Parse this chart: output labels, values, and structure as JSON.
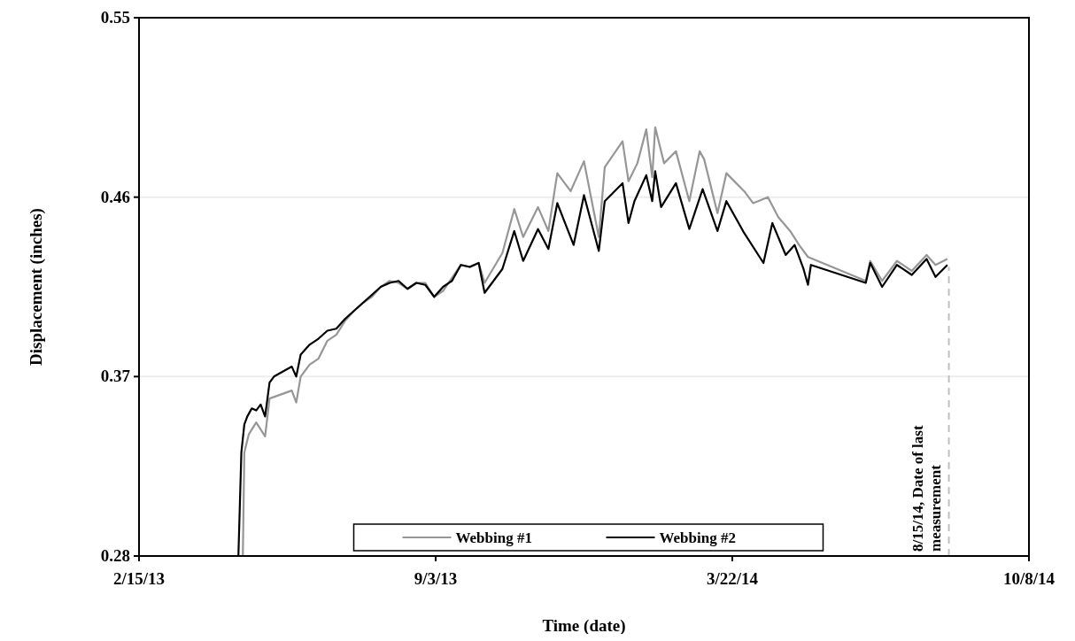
{
  "chart_data": {
    "type": "line",
    "xlabel": "Time (date)",
    "ylabel": "Displacement (inches)",
    "xlim": [
      "2013-02-15",
      "2014-10-08"
    ],
    "xticks": [
      {
        "value": "2013-02-15",
        "label": "2/15/13"
      },
      {
        "value": "2013-09-03",
        "label": "9/3/13"
      },
      {
        "value": "2014-03-22",
        "label": "3/22/14"
      },
      {
        "value": "2014-10-08",
        "label": "10/8/14"
      }
    ],
    "ylim": [
      0.28,
      0.55
    ],
    "yticks": [
      0.28,
      0.37,
      0.46,
      0.55
    ],
    "grid": "y",
    "legend": "bottom",
    "ref_lines": [
      {
        "axis": "x",
        "value": "2014-08-15",
        "label": "8/15/14, Date of last measurement",
        "color": "#bfbfbf",
        "line_style": "dashed"
      }
    ],
    "series": [
      {
        "name": "Webbing #1",
        "color": "#969696",
        "x": [
          "2013-04-26",
          "2013-04-27",
          "2013-04-30",
          "2013-05-05",
          "2013-05-11",
          "2013-05-14",
          "2013-05-29",
          "2013-06-01",
          "2013-06-04",
          "2013-06-10",
          "2013-06-16",
          "2013-06-22",
          "2013-06-28",
          "2013-07-04",
          "2013-07-10",
          "2013-07-16",
          "2013-07-22",
          "2013-07-28",
          "2013-08-03",
          "2013-08-09",
          "2013-08-15",
          "2013-08-21",
          "2013-08-27",
          "2013-09-02",
          "2013-09-08",
          "2013-09-20",
          "2013-09-26",
          "2013-10-02",
          "2013-10-06",
          "2013-10-18",
          "2013-10-26",
          "2013-11-01",
          "2013-11-11",
          "2013-11-18",
          "2013-11-24",
          "2013-12-03",
          "2013-12-12",
          "2013-12-22",
          "2013-12-26",
          "2014-01-07",
          "2014-01-11",
          "2014-01-17",
          "2014-01-23",
          "2014-01-27",
          "2014-01-29",
          "2014-02-04",
          "2014-02-12",
          "2014-02-21",
          "2014-02-28",
          "2014-03-03",
          "2014-03-12",
          "2014-03-18",
          "2014-03-30",
          "2014-04-05",
          "2014-04-15",
          "2014-04-22",
          "2014-04-30",
          "2014-05-06",
          "2014-05-12",
          "2014-06-20",
          "2014-06-23",
          "2014-07-01",
          "2014-07-11",
          "2014-07-21",
          "2014-07-31",
          "2014-08-06",
          "2014-08-14"
        ],
        "values": [
          0.28,
          0.332,
          0.341,
          0.347,
          0.34,
          0.359,
          0.363,
          0.357,
          0.37,
          0.376,
          0.379,
          0.388,
          0.391,
          0.398,
          0.403,
          0.407,
          0.41,
          0.415,
          0.418,
          0.417,
          0.414,
          0.417,
          0.417,
          0.41,
          0.413,
          0.426,
          0.425,
          0.427,
          0.417,
          0.432,
          0.454,
          0.44,
          0.455,
          0.443,
          0.472,
          0.463,
          0.478,
          0.44,
          0.475,
          0.488,
          0.468,
          0.477,
          0.494,
          0.47,
          0.495,
          0.477,
          0.483,
          0.458,
          0.483,
          0.479,
          0.452,
          0.472,
          0.463,
          0.457,
          0.46,
          0.45,
          0.443,
          0.436,
          0.43,
          0.418,
          0.428,
          0.418,
          0.428,
          0.423,
          0.431,
          0.426,
          0.429
        ]
      },
      {
        "name": "Webbing #2",
        "color": "#000000",
        "x": [
          "2013-04-23",
          "2013-04-25",
          "2013-04-27",
          "2013-04-29",
          "2013-05-02",
          "2013-05-05",
          "2013-05-08",
          "2013-05-11",
          "2013-05-14",
          "2013-05-17",
          "2013-05-29",
          "2013-06-01",
          "2013-06-04",
          "2013-06-10",
          "2013-06-16",
          "2013-06-22",
          "2013-06-28",
          "2013-07-04",
          "2013-07-10",
          "2013-07-16",
          "2013-07-22",
          "2013-07-28",
          "2013-08-03",
          "2013-08-09",
          "2013-08-15",
          "2013-08-21",
          "2013-08-27",
          "2013-09-02",
          "2013-09-08",
          "2013-09-14",
          "2013-09-20",
          "2013-09-26",
          "2013-10-02",
          "2013-10-06",
          "2013-10-18",
          "2013-10-26",
          "2013-11-01",
          "2013-11-11",
          "2013-11-18",
          "2013-11-24",
          "2013-12-05",
          "2013-12-12",
          "2013-12-22",
          "2013-12-26",
          "2014-01-07",
          "2014-01-11",
          "2014-01-15",
          "2014-01-23",
          "2014-01-27",
          "2014-01-29",
          "2014-02-02",
          "2014-02-12",
          "2014-02-21",
          "2014-03-02",
          "2014-03-12",
          "2014-03-18",
          "2014-03-30",
          "2014-04-12",
          "2014-04-18",
          "2014-04-27",
          "2014-05-03",
          "2014-05-09",
          "2014-05-12",
          "2014-05-14",
          "2014-06-20",
          "2014-06-23",
          "2014-07-01",
          "2014-07-11",
          "2014-07-21",
          "2014-07-31",
          "2014-08-06",
          "2014-08-14"
        ],
        "values": [
          0.28,
          0.332,
          0.346,
          0.35,
          0.354,
          0.353,
          0.356,
          0.35,
          0.367,
          0.37,
          0.375,
          0.37,
          0.381,
          0.386,
          0.389,
          0.393,
          0.394,
          0.399,
          0.403,
          0.407,
          0.411,
          0.415,
          0.417,
          0.418,
          0.414,
          0.417,
          0.416,
          0.41,
          0.415,
          0.418,
          0.426,
          0.425,
          0.427,
          0.412,
          0.424,
          0.443,
          0.428,
          0.444,
          0.434,
          0.457,
          0.436,
          0.461,
          0.433,
          0.458,
          0.467,
          0.447,
          0.458,
          0.471,
          0.458,
          0.473,
          0.455,
          0.467,
          0.444,
          0.464,
          0.443,
          0.458,
          0.442,
          0.427,
          0.447,
          0.431,
          0.436,
          0.424,
          0.416,
          0.426,
          0.417,
          0.427,
          0.415,
          0.426,
          0.421,
          0.429,
          0.42,
          0.426
        ]
      }
    ]
  }
}
